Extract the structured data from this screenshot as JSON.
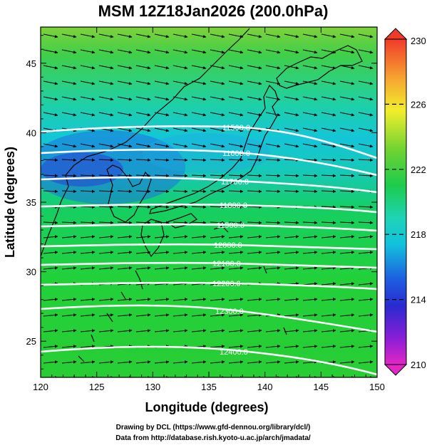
{
  "title": "MSM 12Z18Jan2026 (200.0hPa)",
  "axes": {
    "xlabel": "Longitude (degrees)",
    "ylabel": "Latitude  (degrees)",
    "xlim": [
      120,
      150
    ],
    "ylim": [
      22.4,
      47.6
    ],
    "xticks": [
      "120",
      "125",
      "130",
      "135",
      "140",
      "145",
      "150"
    ],
    "yticks": [
      "25",
      "30",
      "35",
      "40",
      "45"
    ]
  },
  "colorbar": {
    "min": 210,
    "max": 230,
    "tick_labels": [
      "230",
      "226",
      "222",
      "218",
      "214",
      "210"
    ],
    "tick_values": [
      230,
      226,
      222,
      218,
      214,
      210
    ]
  },
  "chart_data": {
    "type": "heatmap",
    "title": "MSM 12Z18Jan2026 (200.0hPa)",
    "xlabel": "Longitude (degrees)",
    "ylabel": "Latitude  (degrees)",
    "contour_labels": [
      "11500.0",
      "11600.0",
      "11700.0",
      "11800.0",
      "11900.0",
      "12000.0",
      "12100.0",
      "12200.0",
      "12300.0",
      "12400.0"
    ],
    "shading_range": [
      210,
      230
    ],
    "overlays": [
      "coastlines",
      "wind vectors",
      "geopotential height contours"
    ]
  },
  "credits": {
    "line1": "Drawing by DCL (https://www.gfd-dennou.org/library/dcl/)",
    "line2": "Data from http://database.rish.kyoto-u.ac.jp/arch/jmadata/"
  },
  "colors": {
    "frame": "#000000",
    "contour": "#ffffff",
    "coast": "#000000"
  }
}
